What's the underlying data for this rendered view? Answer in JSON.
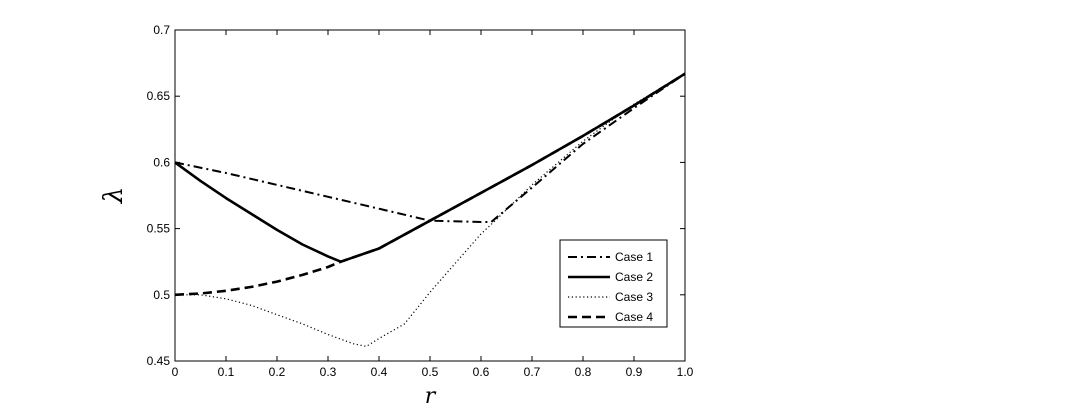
{
  "chart_data": {
    "type": "line",
    "title": "",
    "xlabel": "r",
    "ylabel": "λ",
    "xlim": [
      0,
      1
    ],
    "ylim": [
      0.45,
      0.7
    ],
    "xticks": [
      0,
      0.1,
      0.2,
      0.3,
      0.4,
      0.5,
      0.6,
      0.7,
      0.8,
      0.9,
      1
    ],
    "xtick_labels": [
      "0",
      "0.1",
      "0.2",
      "0.3",
      "0.4",
      "0.5",
      "0.6",
      "0.7",
      "0.8",
      "0.9",
      "1.0"
    ],
    "yticks": [
      0.45,
      0.5,
      0.55,
      0.6,
      0.65,
      0.7
    ],
    "ytick_labels": [
      "0.45",
      "0.5",
      "0.55",
      "0.6",
      "0.65",
      "0.7"
    ],
    "grid": false,
    "legend_position": "bottom-right",
    "series": [
      {
        "name": "Case 1",
        "style": "dashdot",
        "x": [
          0,
          0.1,
          0.2,
          0.3,
          0.4,
          0.5,
          0.6,
          0.62,
          0.7,
          0.8,
          0.9,
          1.0
        ],
        "y": [
          0.6,
          0.592,
          0.583,
          0.574,
          0.565,
          0.556,
          0.555,
          0.555,
          0.581,
          0.614,
          0.641,
          0.667
        ]
      },
      {
        "name": "Case 2",
        "style": "solid",
        "x": [
          0,
          0.05,
          0.1,
          0.15,
          0.2,
          0.25,
          0.3,
          0.325,
          0.4,
          0.5,
          0.6,
          0.7,
          0.8,
          0.9,
          1.0
        ],
        "y": [
          0.6,
          0.586,
          0.573,
          0.561,
          0.549,
          0.538,
          0.529,
          0.525,
          0.535,
          0.556,
          0.577,
          0.598,
          0.62,
          0.643,
          0.667
        ]
      },
      {
        "name": "Case 3",
        "style": "dotted",
        "x": [
          0,
          0.05,
          0.1,
          0.15,
          0.2,
          0.25,
          0.3,
          0.35,
          0.375,
          0.4,
          0.45,
          0.5,
          0.55,
          0.6,
          0.625,
          0.7,
          0.8,
          0.9,
          1.0
        ],
        "y": [
          0.5,
          0.5,
          0.497,
          0.492,
          0.485,
          0.478,
          0.47,
          0.463,
          0.461,
          0.467,
          0.478,
          0.502,
          0.524,
          0.546,
          0.555,
          0.583,
          0.616,
          0.644,
          0.667
        ]
      },
      {
        "name": "Case 4",
        "style": "dashed",
        "x": [
          0,
          0.05,
          0.1,
          0.15,
          0.2,
          0.25,
          0.3,
          0.325,
          0.4,
          0.5,
          0.6,
          0.7,
          0.8,
          0.9,
          1.0
        ],
        "y": [
          0.5,
          0.501,
          0.503,
          0.506,
          0.51,
          0.515,
          0.521,
          0.525,
          0.535,
          0.556,
          0.577,
          0.598,
          0.62,
          0.643,
          0.667
        ]
      }
    ]
  }
}
